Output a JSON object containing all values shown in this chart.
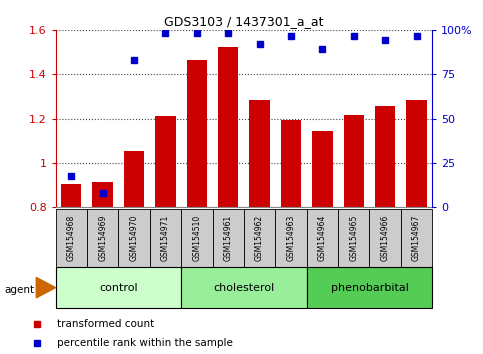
{
  "title": "GDS3103 / 1437301_a_at",
  "samples": [
    "GSM154968",
    "GSM154969",
    "GSM154970",
    "GSM154971",
    "GSM154510",
    "GSM154961",
    "GSM154962",
    "GSM154963",
    "GSM154964",
    "GSM154965",
    "GSM154966",
    "GSM154967"
  ],
  "bar_values": [
    0.905,
    0.915,
    1.055,
    1.21,
    1.465,
    1.525,
    1.285,
    1.195,
    1.145,
    1.215,
    1.255,
    1.285
  ],
  "dot_values": [
    0.94,
    0.865,
    1.465,
    1.585,
    1.585,
    1.585,
    1.535,
    1.575,
    1.515,
    1.575,
    1.555,
    1.575
  ],
  "groups": [
    {
      "label": "control",
      "start": 0,
      "end": 4,
      "color": "#ccffcc"
    },
    {
      "label": "cholesterol",
      "start": 4,
      "end": 8,
      "color": "#99ee99"
    },
    {
      "label": "phenobarbital",
      "start": 8,
      "end": 12,
      "color": "#55cc55"
    }
  ],
  "ylim_left": [
    0.8,
    1.6
  ],
  "ylim_right": [
    0,
    100
  ],
  "bar_color": "#cc0000",
  "dot_color": "#0000cc",
  "grid_color": "#000000",
  "bg_color": "#ffffff",
  "tick_label_bg": "#cccccc",
  "agent_arrow_color": "#cc6600",
  "legend_bar_label": "transformed count",
  "legend_dot_label": "percentile rank within the sample",
  "right_yticks": [
    0,
    25,
    50,
    75,
    100
  ],
  "right_yticklabels": [
    "0",
    "25",
    "50",
    "75",
    "100%"
  ],
  "left_yticks": [
    0.8,
    1.0,
    1.2,
    1.4,
    1.6
  ],
  "left_yticklabels": [
    "0.8",
    "1",
    "1.2",
    "1.4",
    "1.6"
  ]
}
